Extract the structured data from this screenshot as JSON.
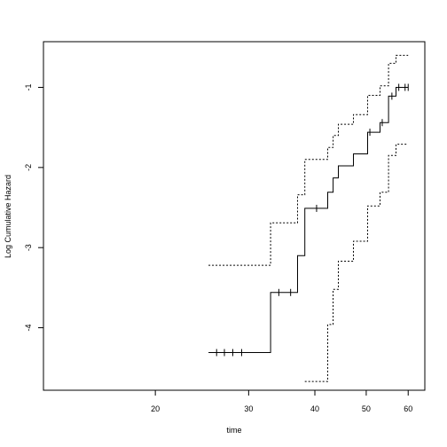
{
  "chart_data": {
    "type": "line",
    "title": "",
    "xlabel": "time",
    "ylabel": "Log Cumulative Hazard",
    "x_scale": "log",
    "xlim": [
      12.3,
      64.5
    ],
    "ylim": [
      -4.78,
      -0.43
    ],
    "x_ticks": [
      20,
      30,
      40,
      50,
      60
    ],
    "y_ticks": [
      -4,
      -3,
      -2,
      -1
    ],
    "grid": false,
    "legend": "none",
    "series": [
      {
        "style": "solid",
        "points": [
          [
            25.2,
            -4.31
          ],
          [
            33.0,
            -4.31
          ],
          [
            33.0,
            -3.56
          ],
          [
            37.1,
            -3.56
          ],
          [
            37.1,
            -3.1
          ],
          [
            38.3,
            -3.1
          ],
          [
            38.3,
            -2.51
          ],
          [
            42.3,
            -2.51
          ],
          [
            42.3,
            -2.31
          ],
          [
            43.3,
            -2.31
          ],
          [
            43.3,
            -2.13
          ],
          [
            44.3,
            -2.13
          ],
          [
            44.3,
            -1.98
          ],
          [
            47.3,
            -1.98
          ],
          [
            47.3,
            -1.83
          ],
          [
            50.3,
            -1.83
          ],
          [
            50.3,
            -1.56
          ],
          [
            53.1,
            -1.56
          ],
          [
            53.1,
            -1.44
          ],
          [
            55.1,
            -1.44
          ],
          [
            55.1,
            -1.11
          ],
          [
            56.9,
            -1.11
          ],
          [
            56.9,
            -1.0
          ],
          [
            60.0,
            -1.0
          ]
        ],
        "censor_marks": [
          [
            26.1,
            -4.31
          ],
          [
            27.0,
            -4.31
          ],
          [
            28.0,
            -4.31
          ],
          [
            29.1,
            -4.31
          ],
          [
            34.2,
            -3.56
          ],
          [
            36.0,
            -3.56
          ],
          [
            40.3,
            -2.51
          ],
          [
            50.8,
            -1.56
          ],
          [
            53.6,
            -1.44
          ],
          [
            55.9,
            -1.11
          ],
          [
            57.6,
            -1.0
          ],
          [
            59.2,
            -1.0
          ],
          [
            60.0,
            -1.0
          ]
        ]
      },
      {
        "style": "dotted",
        "points": [
          [
            25.2,
            -3.22
          ],
          [
            33.0,
            -3.22
          ],
          [
            33.0,
            -2.69
          ],
          [
            37.1,
            -2.69
          ],
          [
            37.1,
            -2.34
          ],
          [
            38.3,
            -2.34
          ],
          [
            38.3,
            -1.9
          ],
          [
            42.3,
            -1.9
          ],
          [
            42.3,
            -1.75
          ],
          [
            43.3,
            -1.75
          ],
          [
            43.3,
            -1.6
          ],
          [
            44.3,
            -1.6
          ],
          [
            44.3,
            -1.46
          ],
          [
            47.3,
            -1.46
          ],
          [
            47.3,
            -1.34
          ],
          [
            50.3,
            -1.34
          ],
          [
            50.3,
            -1.1
          ],
          [
            53.1,
            -1.1
          ],
          [
            53.1,
            -0.98
          ],
          [
            55.1,
            -0.98
          ],
          [
            55.1,
            -0.7
          ],
          [
            56.9,
            -0.7
          ],
          [
            56.9,
            -0.6
          ],
          [
            60.0,
            -0.6
          ]
        ]
      },
      {
        "style": "dotted",
        "points": [
          [
            38.3,
            -4.67
          ],
          [
            42.3,
            -4.67
          ],
          [
            42.3,
            -3.96
          ],
          [
            43.3,
            -3.96
          ],
          [
            43.3,
            -3.52
          ],
          [
            44.3,
            -3.52
          ],
          [
            44.3,
            -3.17
          ],
          [
            47.3,
            -3.17
          ],
          [
            47.3,
            -2.92
          ],
          [
            50.3,
            -2.92
          ],
          [
            50.3,
            -2.48
          ],
          [
            53.1,
            -2.48
          ],
          [
            53.1,
            -2.31
          ],
          [
            55.1,
            -2.31
          ],
          [
            55.1,
            -1.85
          ],
          [
            56.9,
            -1.85
          ],
          [
            56.9,
            -1.71
          ],
          [
            60.0,
            -1.71
          ]
        ]
      }
    ]
  }
}
